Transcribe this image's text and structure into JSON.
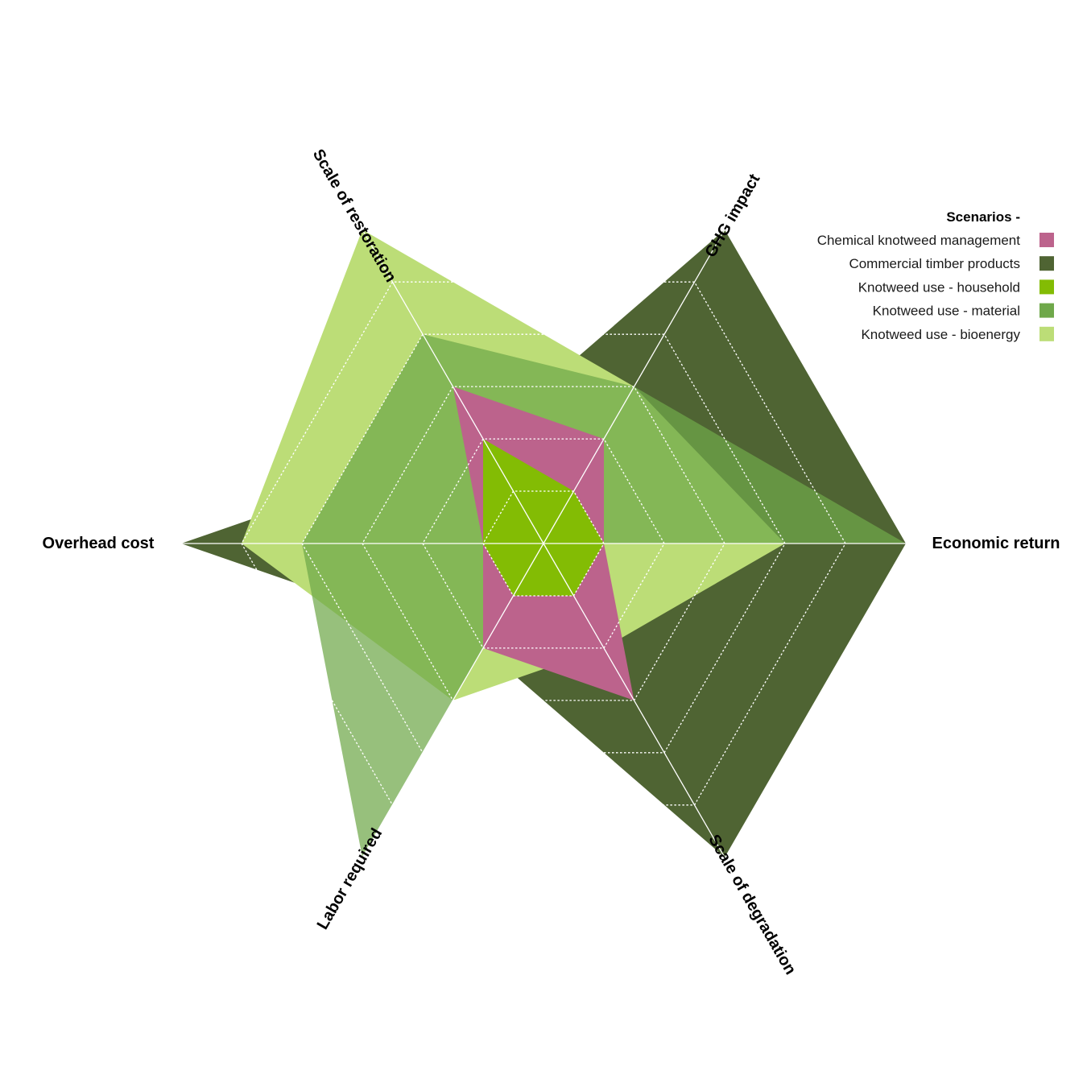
{
  "chart_data": {
    "type": "radar",
    "axes": [
      "Economic return",
      "GHG impact",
      "Scale of restoration",
      "Overhead cost",
      "Labor required",
      "Scale of degradation"
    ],
    "rmax": 6,
    "ticks": [
      1,
      2,
      3,
      4,
      5,
      6
    ],
    "grid": true,
    "legend_title": "Scenarios -",
    "legend_position": "top-right",
    "series": [
      {
        "name": "Commercial timber products",
        "color": "#4f6433",
        "opacity": 1.0,
        "values": [
          6,
          6,
          2,
          6,
          2,
          6
        ]
      },
      {
        "name": "Knotweed use - bioenergy",
        "color": "#bcdd77",
        "opacity": 1.0,
        "values": [
          4,
          3,
          6,
          5,
          3,
          2
        ]
      },
      {
        "name": "Knotweed use - material",
        "color": "#6fa84a",
        "opacity": 0.72,
        "values": [
          6,
          3,
          4,
          4,
          6,
          0
        ]
      },
      {
        "name": "Chemical knotweed management",
        "color": "#bc638c",
        "opacity": 1.0,
        "values": [
          1,
          2,
          3,
          1,
          2,
          3
        ]
      },
      {
        "name": "Knotweed use - household",
        "color": "#83bc04",
        "opacity": 1.0,
        "values": [
          1,
          1,
          2,
          1,
          1,
          1
        ]
      }
    ],
    "legend_order": [
      "Chemical knotweed management",
      "Commercial timber products",
      "Knotweed use - household",
      "Knotweed use - material",
      "Knotweed use - bioenergy"
    ],
    "legend_colors": [
      "#bc638c",
      "#4f6433",
      "#83bc04",
      "#6fa84a",
      "#bcdd77"
    ]
  }
}
